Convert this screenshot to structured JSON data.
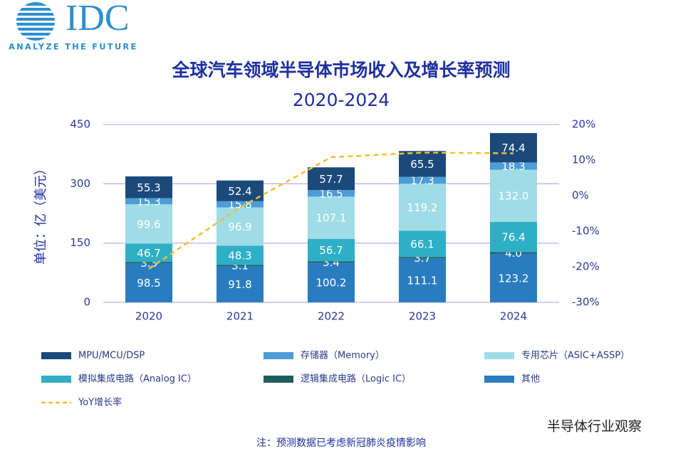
{
  "header": {
    "logo": "IDC",
    "tagline": "ANALYZE THE FUTURE"
  },
  "chart_data": {
    "type": "bar",
    "stacked": true,
    "title": "全球汽车领域半导体市场收入及增长率预测",
    "subtitle": "2020-2024",
    "y_label": "单位：亿（美元）",
    "categories": [
      "2020",
      "2021",
      "2022",
      "2023",
      "2024"
    ],
    "ylim": [
      0,
      450
    ],
    "yticks": [
      0,
      150,
      300,
      450
    ],
    "y2lim": [
      -30,
      20
    ],
    "y2ticks": [
      {
        "value": 20,
        "label": "20%"
      },
      {
        "value": 10,
        "label": "10%"
      },
      {
        "value": 0,
        "label": "0%"
      },
      {
        "value": -10,
        "label": "-10%"
      },
      {
        "value": -20,
        "label": "-20%"
      },
      {
        "value": -30,
        "label": "-30%"
      }
    ],
    "grid": true,
    "series": [
      {
        "name": "其他",
        "color": "#2a7cc0",
        "values": [
          98.5,
          91.8,
          100.2,
          111.1,
          123.2
        ]
      },
      {
        "name": "逻辑集成电路（Logic IC）",
        "color": "#1f5c5e",
        "values": [
          3.3,
          3.1,
          3.4,
          3.7,
          4.0
        ],
        "value_labels": [
          "3.3",
          "3.1",
          "3.4",
          "3.7",
          "4.0"
        ]
      },
      {
        "name": "模拟集成电路（Analog IC）",
        "color": "#2eafc6",
        "values": [
          46.7,
          48.3,
          56.7,
          66.1,
          76.4
        ]
      },
      {
        "name": "专用芯片（ASIC+ASSP）",
        "color": "#9fdce6",
        "values": [
          99.6,
          96.9,
          107.1,
          119.2,
          132.0
        ],
        "value_labels": [
          "99.6",
          "96.9",
          "107.1",
          "119.2",
          "132.0"
        ]
      },
      {
        "name": "存储器（Memory）",
        "color": "#4c9dd8",
        "values": [
          15.3,
          15.8,
          16.5,
          17.3,
          18.3
        ]
      },
      {
        "name": "MPU/MCU/DSP",
        "color": "#1b4a7a",
        "values": [
          55.3,
          52.4,
          57.7,
          65.5,
          74.4
        ]
      },
      {
        "name": "YoY增长率",
        "color": "#f0c030",
        "type": "line",
        "axis": "y2",
        "values": [
          -20.6,
          -3.3,
          10.8,
          12.1,
          11.9
        ]
      }
    ]
  },
  "footer": {
    "note": "注：预测数据已考虑新冠肺炎疫情影响",
    "watermark": "半导体行业观察"
  }
}
